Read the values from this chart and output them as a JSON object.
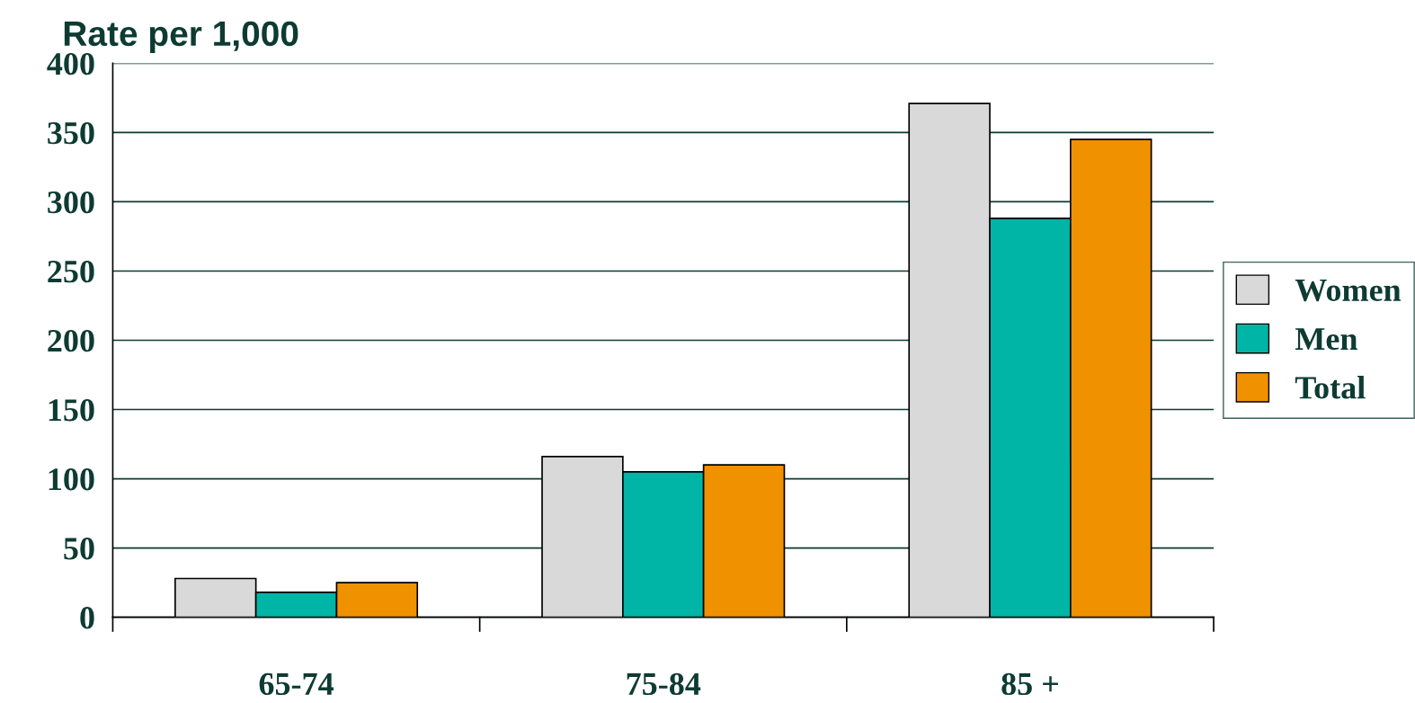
{
  "chart_data": {
    "type": "bar",
    "ylabel": "Rate per 1,000",
    "categories": [
      "65-74",
      "75-84",
      "85 +"
    ],
    "series": [
      {
        "name": "Women",
        "color": "#d9d9d9",
        "values": [
          28,
          116,
          371
        ]
      },
      {
        "name": "Men",
        "color": "#00b5a5",
        "values": [
          18,
          105,
          288
        ]
      },
      {
        "name": "Total",
        "color": "#f09100",
        "values": [
          25,
          110,
          345
        ]
      }
    ],
    "ylim": [
      0,
      400
    ],
    "yticks": [
      0,
      50,
      100,
      150,
      200,
      250,
      300,
      350,
      400
    ],
    "grid": "y",
    "legend": "right"
  }
}
